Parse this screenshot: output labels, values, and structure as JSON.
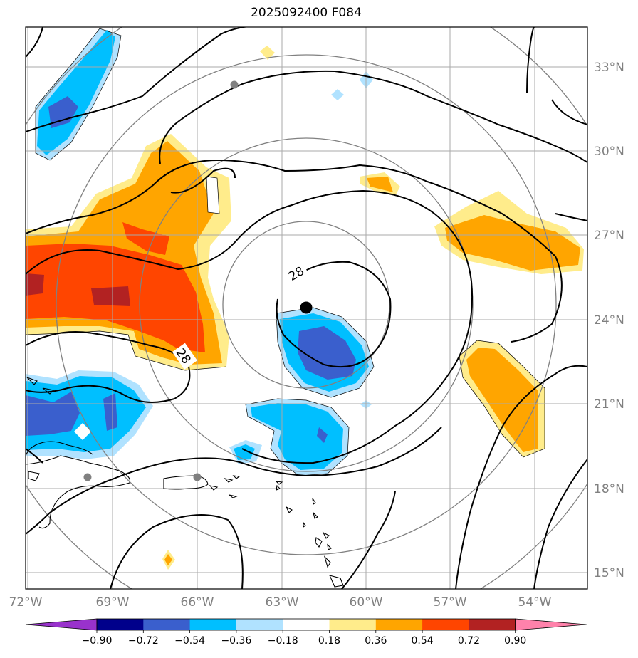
{
  "title": "2025092400 F084",
  "map": {
    "lon_range": [
      -72,
      -53
    ],
    "lat_range": [
      14.5,
      34.5
    ],
    "lat_labels": [
      "15°N",
      "18°N",
      "21°N",
      "24°N",
      "27°N",
      "30°N",
      "33°N"
    ],
    "lon_labels": [
      "72°W",
      "69°W",
      "66°W",
      "63°W",
      "60°W",
      "57°W",
      "54°W"
    ],
    "contour_labels": [
      "28",
      "28"
    ],
    "center_marker": {
      "lon": -62.0,
      "lat": 24.4
    },
    "gray_markers": [
      {
        "lon": -64.7,
        "lat": 32.3
      },
      {
        "lon": -69.9,
        "lat": 18.4
      },
      {
        "lon": -66.0,
        "lat": 18.4
      }
    ],
    "range_rings": 4
  },
  "colorbar": {
    "colors": [
      "#9932cc",
      "#00008b",
      "#3a5fcd",
      "#00bfff",
      "#b0e2ff",
      "#ffffff",
      "#ffec8b",
      "#ffa500",
      "#ff4500",
      "#b22222",
      "#ff82ab"
    ],
    "labels": [
      "−0.90",
      "−0.72",
      "−0.54",
      "−0.36",
      "−0.18",
      "0.18",
      "0.36",
      "0.54",
      "0.72",
      "0.90"
    ]
  }
}
